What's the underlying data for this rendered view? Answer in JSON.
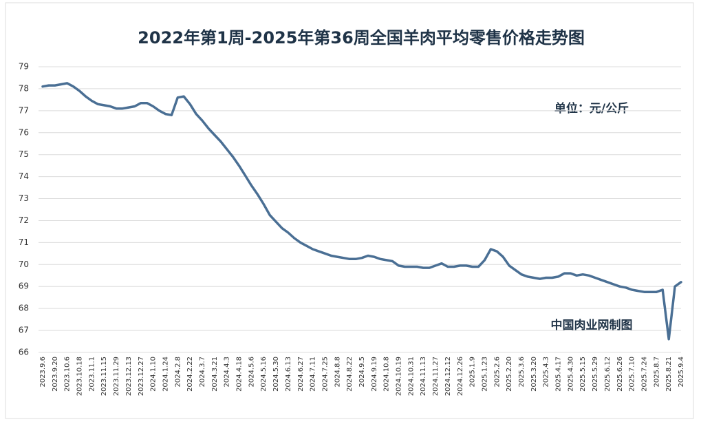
{
  "chart_data": {
    "type": "line",
    "title": "2022年第1周-2025年第36周全国羊肉平均零售价格走势图",
    "annotations": [
      "单位：元/公斤",
      "中国肉业网制图"
    ],
    "categories": [
      "2023.9.6",
      null,
      "2023.9.20",
      null,
      "2023.10.6",
      null,
      "2023.10.18",
      null,
      "2023.11.1",
      null,
      "2023.11.15",
      null,
      "2023.11.29",
      null,
      "2023.12.13",
      null,
      "2023.12.27",
      null,
      "2024.1.10",
      null,
      "2024.1.24",
      null,
      "2024.2.8",
      null,
      "2024.2.22",
      null,
      "2024.3.7",
      null,
      "2024.3.21",
      null,
      "2024.4.3",
      null,
      "2024.4.18",
      null,
      "2024.5.6",
      null,
      "2024.5.16",
      null,
      "2024.5.30",
      null,
      "2024.6.13",
      null,
      "2024.6.27",
      null,
      "2024.7.11",
      null,
      "2024.7.25",
      null,
      "2024.8.8",
      null,
      "2024.8.22",
      null,
      "2024.9.5",
      null,
      "2024.9.19",
      null,
      "2024.10.8",
      null,
      "2024.10.19",
      null,
      "2024.10.31",
      null,
      "2024.11.13",
      null,
      "2024.11.27",
      null,
      "2024.12.12",
      null,
      "2024.12.26",
      null,
      "2025.1.9",
      null,
      "2025.1.23",
      null,
      "2025.2.6",
      null,
      "2025.2.20",
      null,
      "2025.3.6",
      null,
      "2025.3.20",
      null,
      "2025.4.3",
      null,
      "2025.4.17",
      null,
      "2025.4.30",
      null,
      "2025.5.15",
      null,
      "2025.5.29",
      null,
      "2025.6.12",
      null,
      "2025.6.26",
      null,
      "2025.7.10",
      null,
      "2025.7.24",
      null,
      "2025.8.7",
      null,
      "2025.8.21",
      null,
      "2025.9.4"
    ],
    "series": [
      {
        "name": "全国羊肉平均零售价格",
        "color": "#4a6f94",
        "values": [
          78.1,
          78.15,
          78.15,
          78.2,
          78.25,
          78.1,
          77.9,
          77.65,
          77.45,
          77.3,
          77.25,
          77.2,
          77.1,
          77.1,
          77.15,
          77.2,
          77.35,
          77.35,
          77.2,
          77.0,
          76.85,
          76.8,
          77.6,
          77.65,
          77.3,
          76.85,
          76.55,
          76.2,
          75.9,
          75.6,
          75.25,
          74.9,
          74.5,
          74.05,
          73.6,
          73.2,
          72.75,
          72.25,
          71.95,
          71.65,
          71.45,
          71.2,
          71.0,
          70.85,
          70.7,
          70.6,
          70.5,
          70.4,
          70.35,
          70.3,
          70.25,
          70.25,
          70.3,
          70.4,
          70.35,
          70.25,
          70.2,
          70.15,
          69.95,
          69.9,
          69.9,
          69.9,
          69.85,
          69.85,
          69.95,
          70.05,
          69.9,
          69.9,
          69.95,
          69.95,
          69.9,
          69.9,
          70.2,
          70.7,
          70.6,
          70.35,
          69.95,
          69.75,
          69.55,
          69.45,
          69.4,
          69.35,
          69.4,
          69.4,
          69.45,
          69.6,
          69.6,
          69.5,
          69.55,
          69.5,
          69.4,
          69.3,
          69.2,
          69.1,
          69.0,
          68.95,
          68.85,
          68.8,
          68.75,
          68.75,
          68.75,
          68.85,
          66.6,
          69.0,
          69.2
        ]
      }
    ],
    "ylim": [
      66,
      79
    ],
    "yticks": [
      66,
      67,
      68,
      69,
      70,
      71,
      72,
      73,
      74,
      75,
      76,
      77,
      78,
      79
    ],
    "grid": true
  }
}
